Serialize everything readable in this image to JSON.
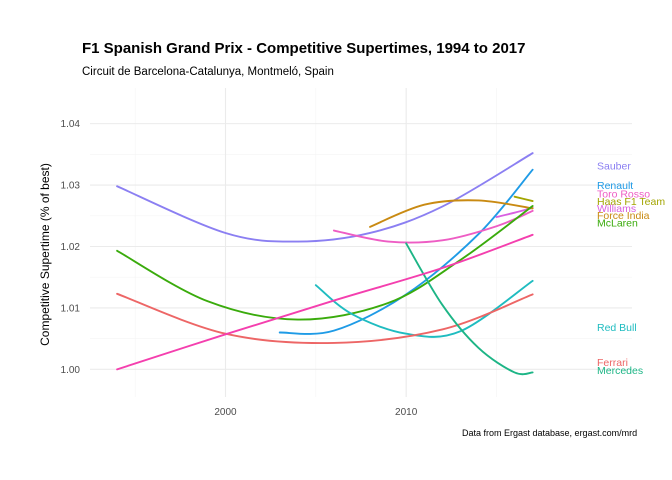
{
  "chart_data": {
    "type": "line",
    "title": "F1 Spanish Grand Prix - Competitive Supertimes, 1994 to 2017",
    "subtitle": "Circuit de Barcelona-Catalunya, Montmeló, Spain",
    "xlabel": "",
    "ylabel": "Competitive Supertime (% of best)",
    "caption": "Data from Ergast database, ergast.com/mrd",
    "xlim": [
      1992.5,
      2022.5
    ],
    "ylim": [
      0.9955,
      1.0458
    ],
    "x_ticks": [
      2000,
      2010
    ],
    "x_tick_labels": [
      "2000",
      "2010"
    ],
    "y_ticks": [
      1.0,
      1.01,
      1.02,
      1.03,
      1.04
    ],
    "y_tick_labels": [
      "1.00",
      "1.01",
      "1.02",
      "1.03",
      "1.04"
    ],
    "grid": true,
    "legend": "direct labels at right",
    "series": [
      {
        "name": "Sauber",
        "color": "#8b7ff2",
        "label_y": 1.0332,
        "x": [
          1994,
          2000,
          2004,
          2008,
          2012,
          2017
        ],
        "values": [
          1.0298,
          1.0222,
          1.0208,
          1.0222,
          1.0265,
          1.0352
        ]
      },
      {
        "name": "Renault",
        "color": "#1f9be6",
        "label_y": 1.03,
        "x": [
          2003,
          2006,
          2010,
          2014,
          2017
        ],
        "values": [
          1.006,
          1.0063,
          1.0122,
          1.022,
          1.0325
        ]
      },
      {
        "name": "Toro Rosso",
        "color": "#ee5dc4",
        "label_y": 1.0286,
        "x": [
          2006,
          2009,
          2012,
          2015,
          2017
        ],
        "values": [
          1.0226,
          1.0208,
          1.021,
          1.0233,
          1.0258
        ]
      },
      {
        "name": "Haas F1 Team",
        "color": "#a3a500",
        "label_y": 1.0274,
        "x": [
          2016,
          2017
        ],
        "values": [
          1.0281,
          1.0274
        ]
      },
      {
        "name": "Williams",
        "color": "#d85fe1",
        "label_y": 1.0263,
        "x": [
          2015,
          2016,
          2017
        ],
        "values": [
          1.0248,
          1.0255,
          1.0263
        ]
      },
      {
        "name": "Force India",
        "color": "#c98a12",
        "label_y": 1.0251,
        "x": [
          2008,
          2011,
          2014,
          2017
        ],
        "values": [
          1.0232,
          1.0268,
          1.0275,
          1.0262
        ]
      },
      {
        "name": "McLaren",
        "color": "#3aab0c",
        "label_y": 1.0239,
        "x": [
          1994,
          1999,
          2004,
          2009,
          2013,
          2017
        ],
        "values": [
          1.0193,
          1.0111,
          1.0081,
          1.0108,
          1.0178,
          1.0266
        ]
      },
      {
        "name": "Red Bull",
        "color": "#1fbcc0",
        "label_y": 1.0069,
        "x": [
          2005,
          2007,
          2010,
          2013,
          2017
        ],
        "values": [
          1.0137,
          1.009,
          1.0058,
          1.0062,
          1.0144
        ]
      },
      {
        "name": "Ferrari",
        "color": "#ed6666",
        "label_y": 1.0012,
        "x": [
          1994,
          2000,
          2006,
          2012,
          2017
        ],
        "values": [
          1.0123,
          1.0058,
          1.0043,
          1.0065,
          1.0122
        ]
      },
      {
        "name": "Mercedes",
        "color": "#1db586",
        "label_y": 0.9999,
        "x": [
          2010,
          2012,
          2014,
          2016,
          2017
        ],
        "values": [
          1.0205,
          1.0105,
          1.0035,
          0.9995,
          0.9995
        ]
      },
      {
        "name": "",
        "color": "#f43fae",
        "label_y": null,
        "x": [
          1994,
          2000,
          2006,
          2012,
          2017
        ],
        "values": [
          1.0,
          1.0057,
          1.0112,
          1.0165,
          1.0219
        ]
      }
    ]
  }
}
